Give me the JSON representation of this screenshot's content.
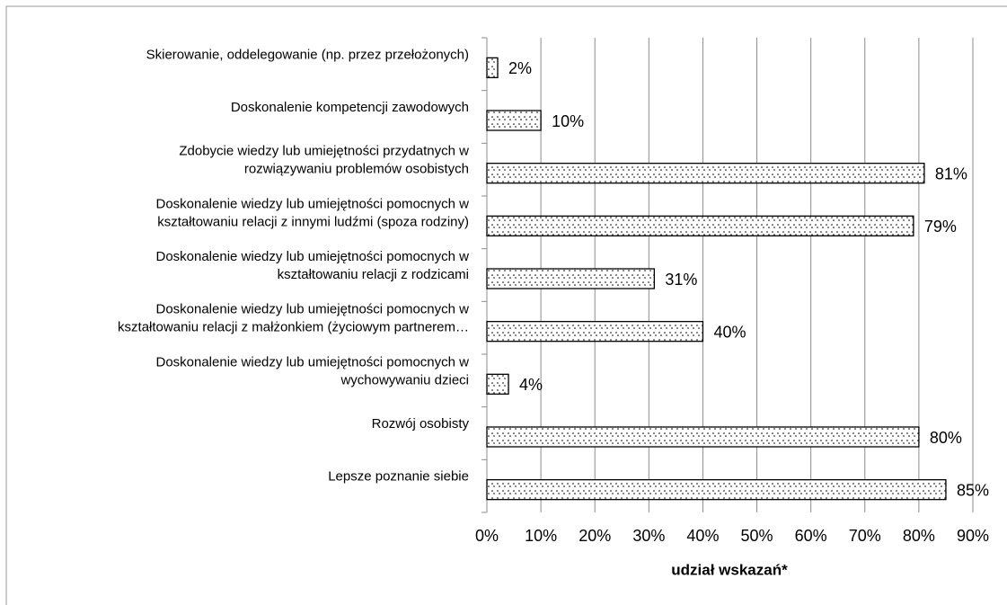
{
  "chart_data": {
    "type": "hbar",
    "categories": [
      [
        "Skierowanie, oddelegowanie (np. przez przełożonych)"
      ],
      [
        "Doskonalenie kompetencji zawodowych"
      ],
      [
        "Zdobycie wiedzy lub umiejętności przydatnych w",
        "rozwiązywaniu problemów osobistych"
      ],
      [
        "Doskonalenie wiedzy lub umiejętności pomocnych w",
        "kształtowaniu relacji z innymi ludźmi (spoza rodziny)"
      ],
      [
        "Doskonalenie wiedzy lub umiejętności pomocnych w",
        "kształtowaniu relacji z rodzicami"
      ],
      [
        "Doskonalenie wiedzy lub umiejętności pomocnych w",
        "kształtowaniu relacji z małżonkiem (życiowym partnerem…"
      ],
      [
        "Doskonalenie wiedzy lub umiejętności pomocnych w",
        "wychowywaniu dzieci"
      ],
      [
        "Rozwój osobisty"
      ],
      [
        "Lepsze poznanie siebie"
      ]
    ],
    "values": [
      2,
      10,
      81,
      79,
      31,
      40,
      4,
      80,
      85
    ],
    "value_labels": [
      "2%",
      "10%",
      "81%",
      "79%",
      "31%",
      "40%",
      "4%",
      "80%",
      "85%"
    ],
    "color": "#000000",
    "xlabel": "udział wskazań*",
    "xlim": [
      0,
      90
    ],
    "xticks": [
      {
        "value": 0,
        "label": "0%"
      },
      {
        "value": 10,
        "label": "10%"
      },
      {
        "value": 20,
        "label": "20%"
      },
      {
        "value": 30,
        "label": "30%"
      },
      {
        "value": 40,
        "label": "40%"
      },
      {
        "value": 50,
        "label": "50%"
      },
      {
        "value": 60,
        "label": "60%"
      },
      {
        "value": 70,
        "label": "70%"
      },
      {
        "value": 80,
        "label": "80%"
      },
      {
        "value": 90,
        "label": "90%"
      }
    ],
    "grid": true
  }
}
